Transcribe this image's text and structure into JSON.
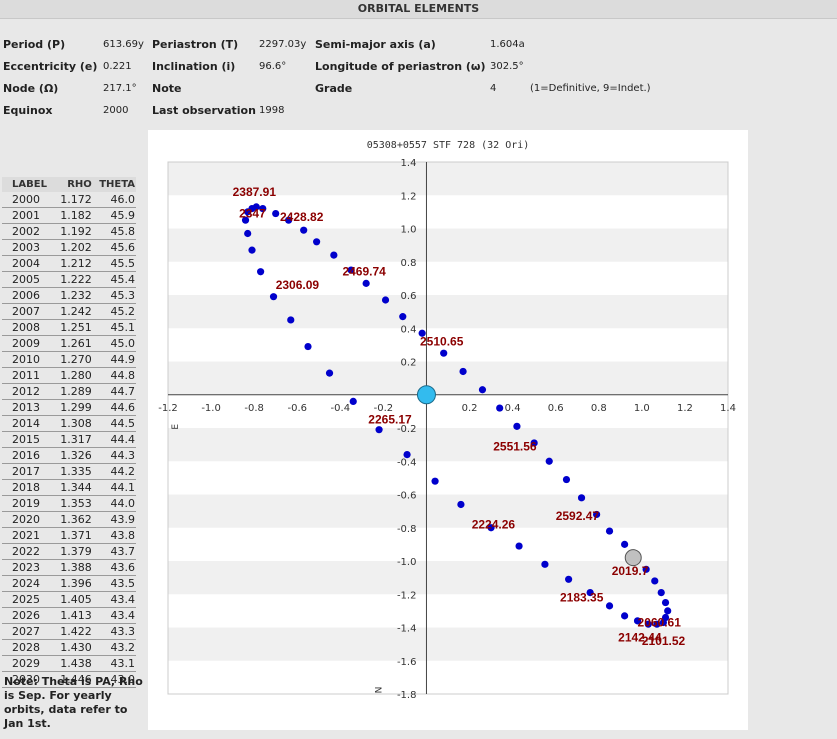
{
  "header": {
    "title": "ORBITAL ELEMENTS"
  },
  "elements": [
    {
      "label": "Period (P)",
      "value": "613.69y"
    },
    {
      "label": "Periastron (T)",
      "value": "2297.03y"
    },
    {
      "label": "Semi-major axis (a)",
      "value": "1.604a"
    },
    {
      "label": "Eccentricity (e)",
      "value": "0.221"
    },
    {
      "label": "Inclination (i)",
      "value": "96.6°"
    },
    {
      "label": "Longitude of periastron (ω)",
      "value": "302.5°"
    },
    {
      "label": "Node (Ω)",
      "value": "217.1°"
    },
    {
      "label": "Note",
      "value": ""
    },
    {
      "label": "Grade",
      "value": "4"
    },
    {
      "label": "Equinox",
      "value": "2000"
    },
    {
      "label": "Last observation",
      "value": "1998"
    }
  ],
  "grade_note": "(1=Definitive, 9=Indet.)",
  "table": {
    "headers": [
      "LABEL",
      "RHO",
      "THETA"
    ],
    "rows": [
      [
        "2000",
        "1.172",
        "46.0"
      ],
      [
        "2001",
        "1.182",
        "45.9"
      ],
      [
        "2002",
        "1.192",
        "45.8"
      ],
      [
        "2003",
        "1.202",
        "45.6"
      ],
      [
        "2004",
        "1.212",
        "45.5"
      ],
      [
        "2005",
        "1.222",
        "45.4"
      ],
      [
        "2006",
        "1.232",
        "45.3"
      ],
      [
        "2007",
        "1.242",
        "45.2"
      ],
      [
        "2008",
        "1.251",
        "45.1"
      ],
      [
        "2009",
        "1.261",
        "45.0"
      ],
      [
        "2010",
        "1.270",
        "44.9"
      ],
      [
        "2011",
        "1.280",
        "44.8"
      ],
      [
        "2012",
        "1.289",
        "44.7"
      ],
      [
        "2013",
        "1.299",
        "44.6"
      ],
      [
        "2014",
        "1.308",
        "44.5"
      ],
      [
        "2015",
        "1.317",
        "44.4"
      ],
      [
        "2016",
        "1.326",
        "44.3"
      ],
      [
        "2017",
        "1.335",
        "44.2"
      ],
      [
        "2018",
        "1.344",
        "44.1"
      ],
      [
        "2019",
        "1.353",
        "44.0"
      ],
      [
        "2020",
        "1.362",
        "43.9"
      ],
      [
        "2021",
        "1.371",
        "43.8"
      ],
      [
        "2022",
        "1.379",
        "43.7"
      ],
      [
        "2023",
        "1.388",
        "43.6"
      ],
      [
        "2024",
        "1.396",
        "43.5"
      ],
      [
        "2025",
        "1.405",
        "43.4"
      ],
      [
        "2026",
        "1.413",
        "43.4"
      ],
      [
        "2027",
        "1.422",
        "43.3"
      ],
      [
        "2028",
        "1.430",
        "43.2"
      ],
      [
        "2029",
        "1.438",
        "43.1"
      ],
      [
        "2030",
        "1.446",
        "43.0"
      ]
    ]
  },
  "note": "Note: Theta is PA, Rho is Sep. For yearly orbits, data refer to Jan 1st.",
  "chart_data": {
    "type": "scatter",
    "title": "05308+0557 STF 728 (32 Ori)",
    "xlim": [
      -1.2,
      1.4
    ],
    "ylim": [
      -1.8,
      1.4
    ],
    "x_ticks": [
      "-1.2",
      "-1.0",
      "-0.8",
      "-0.6",
      "-0.4",
      "-0.2",
      "0.2",
      "0.4",
      "0.6",
      "0.8",
      "1.0",
      "1.2",
      "1.4"
    ],
    "y_ticks": [
      "1.4",
      "1.2",
      "1.0",
      "0.8",
      "0.6",
      "0.4",
      "0.2",
      "-0.2",
      "-0.4",
      "-0.6",
      "-0.8",
      "-1.0",
      "-1.2",
      "-1.4",
      "-1.6",
      "-1.8"
    ],
    "axis_e": "E",
    "axis_n": "N",
    "grid": "horizontal bands",
    "colors": {
      "points": "#0000cc",
      "labels": "#8b0000",
      "primary": "#33bbee",
      "current": "#c0c0c0"
    },
    "points": [
      [
        -0.81,
        1.12
      ],
      [
        -0.79,
        1.13
      ],
      [
        -0.76,
        1.12
      ],
      [
        -0.7,
        1.09
      ],
      [
        -0.64,
        1.05
      ],
      [
        -0.57,
        0.99
      ],
      [
        -0.51,
        0.92
      ],
      [
        -0.43,
        0.84
      ],
      [
        -0.35,
        0.75
      ],
      [
        -0.28,
        0.67
      ],
      [
        -0.19,
        0.57
      ],
      [
        -0.11,
        0.47
      ],
      [
        -0.02,
        0.37
      ],
      [
        0.08,
        0.25
      ],
      [
        0.17,
        0.14
      ],
      [
        0.26,
        0.03
      ],
      [
        0.34,
        -0.08
      ],
      [
        0.42,
        -0.19
      ],
      [
        0.5,
        -0.29
      ],
      [
        0.57,
        -0.4
      ],
      [
        0.65,
        -0.51
      ],
      [
        0.72,
        -0.62
      ],
      [
        0.79,
        -0.72
      ],
      [
        0.85,
        -0.82
      ],
      [
        0.92,
        -0.9
      ],
      [
        0.97,
        -0.99
      ],
      [
        1.02,
        -1.05
      ],
      [
        1.06,
        -1.12
      ],
      [
        1.09,
        -1.19
      ],
      [
        1.11,
        -1.25
      ],
      [
        1.12,
        -1.3
      ],
      [
        1.11,
        -1.34
      ],
      [
        1.1,
        -1.37
      ],
      [
        1.07,
        -1.38
      ],
      [
        1.03,
        -1.38
      ],
      [
        0.98,
        -1.36
      ],
      [
        0.92,
        -1.33
      ],
      [
        0.85,
        -1.27
      ],
      [
        0.76,
        -1.19
      ],
      [
        0.66,
        -1.11
      ],
      [
        0.55,
        -1.02
      ],
      [
        0.43,
        -0.91
      ],
      [
        0.3,
        -0.8
      ],
      [
        0.16,
        -0.66
      ],
      [
        0.04,
        -0.52
      ],
      [
        -0.09,
        -0.36
      ],
      [
        -0.22,
        -0.21
      ],
      [
        -0.34,
        -0.04
      ],
      [
        -0.45,
        0.13
      ],
      [
        -0.55,
        0.29
      ],
      [
        -0.63,
        0.45
      ],
      [
        -0.71,
        0.59
      ],
      [
        -0.77,
        0.74
      ],
      [
        -0.81,
        0.87
      ],
      [
        -0.83,
        0.97
      ],
      [
        -0.84,
        1.05
      ],
      [
        -0.83,
        1.1
      ]
    ],
    "annotations": [
      {
        "x": -0.9,
        "y": 1.22,
        "text": "2387.91"
      },
      {
        "x": -0.87,
        "y": 1.09,
        "text": "2347"
      },
      {
        "x": -0.68,
        "y": 1.07,
        "text": "2428.82"
      },
      {
        "x": -0.39,
        "y": 0.74,
        "text": "2469.74"
      },
      {
        "x": -0.7,
        "y": 0.66,
        "text": "2306.09"
      },
      {
        "x": -0.03,
        "y": 0.32,
        "text": "2510.65"
      },
      {
        "x": -0.27,
        "y": -0.15,
        "text": "2265.17"
      },
      {
        "x": 0.31,
        "y": -0.31,
        "text": "2551.56"
      },
      {
        "x": 0.6,
        "y": -0.73,
        "text": "2592.47"
      },
      {
        "x": 0.21,
        "y": -0.78,
        "text": "2224.26"
      },
      {
        "x": 0.86,
        "y": -1.06,
        "text": "2019.7"
      },
      {
        "x": 0.62,
        "y": -1.22,
        "text": "2183.35"
      },
      {
        "x": 0.98,
        "y": -1.37,
        "text": "2060.61"
      },
      {
        "x": 0.89,
        "y": -1.46,
        "text": "2142.44"
      },
      {
        "x": 1.0,
        "y": -1.48,
        "text": "2101.52"
      }
    ],
    "primary": {
      "x": 0,
      "y": 0
    },
    "current": {
      "x": 0.96,
      "y": -0.98
    }
  }
}
